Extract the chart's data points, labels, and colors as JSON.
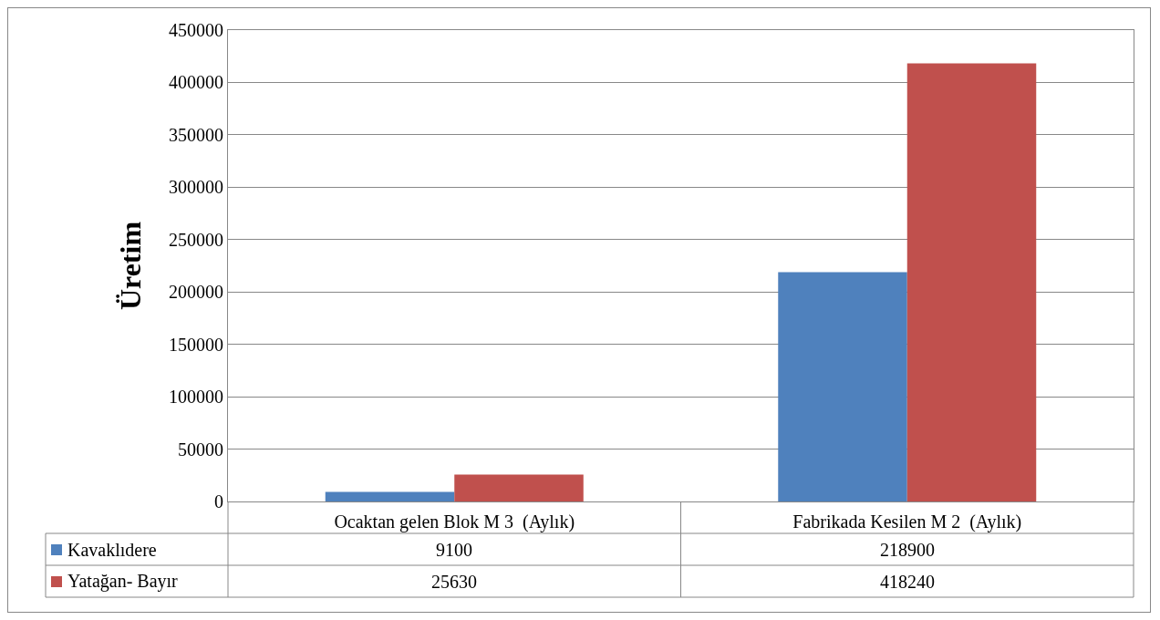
{
  "chart_data": {
    "type": "bar",
    "ylabel": "Üretim",
    "categories": [
      "Ocaktan gelen Blok M 3  (Aylık)",
      "Fabrikada Kesilen M 2  (Aylık)"
    ],
    "series": [
      {
        "name": "Kavaklıdere",
        "color": "#4f81bd",
        "values": [
          9100,
          218900
        ]
      },
      {
        "name": "Yatağan- Bayır",
        "color": "#c0504d",
        "values": [
          25630,
          418240
        ]
      }
    ],
    "ylim": [
      0,
      450000
    ],
    "yticks": [
      0,
      50000,
      100000,
      150000,
      200000,
      250000,
      300000,
      350000,
      400000,
      450000
    ],
    "grid": "y",
    "legend": "bottom left",
    "data_labels": true
  }
}
